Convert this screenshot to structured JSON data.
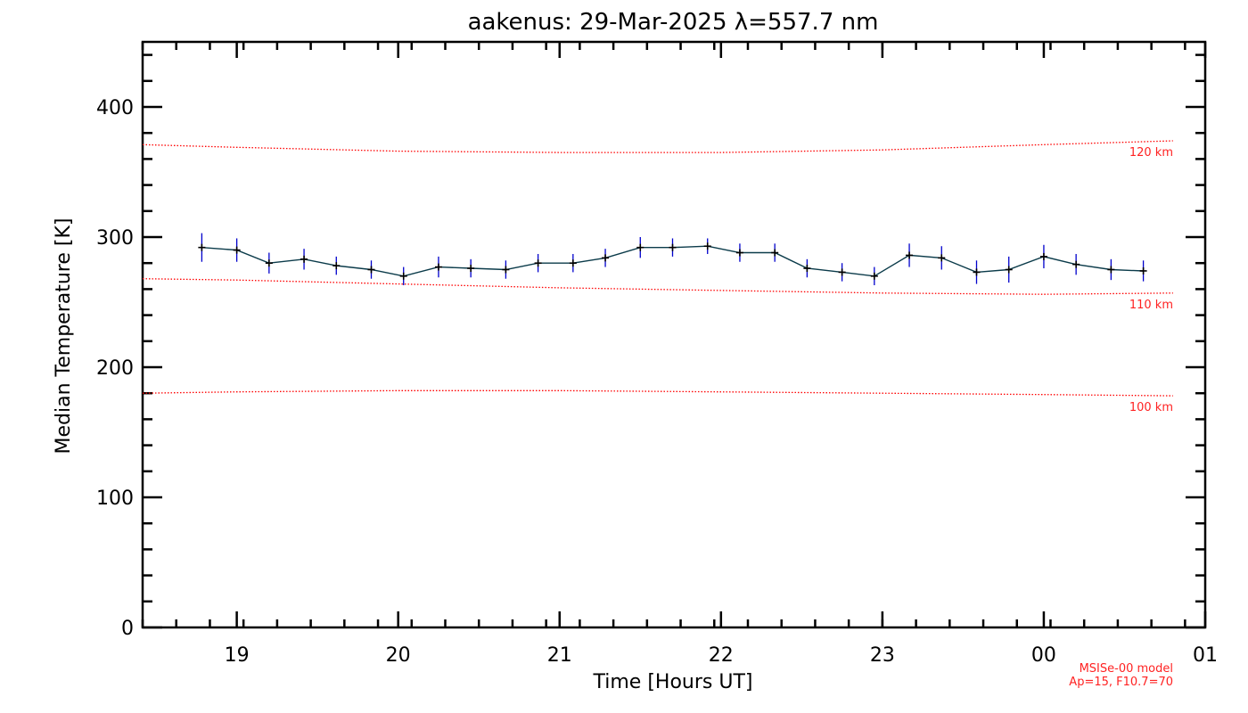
{
  "chart_data": {
    "type": "line",
    "title": "aakenus: 29-Mar-2025 λ=557.7 nm",
    "xlabel": "Time [Hours UT]",
    "ylabel": "Median Temperature [K]",
    "xlim": [
      "18:25",
      "01:00"
    ],
    "ylim": [
      0,
      450
    ],
    "x_ticks": [
      "19",
      "20",
      "21",
      "22",
      "23",
      "00",
      "01"
    ],
    "y_ticks": [
      "0",
      "100",
      "200",
      "300",
      "400"
    ],
    "series": [
      {
        "type": "line-errorbar",
        "color": "#000000",
        "line_color": "#0b3b4a",
        "errorbar_color": "#0000cc",
        "x": [
          "18:47",
          "19:00",
          "19:12",
          "19:25",
          "19:37",
          "19:50",
          "20:02",
          "20:15",
          "20:27",
          "20:40",
          "20:52",
          "21:05",
          "21:17",
          "21:30",
          "21:42",
          "21:55",
          "22:07",
          "22:20",
          "22:32",
          "22:45",
          "22:57",
          "23:10",
          "23:22",
          "23:35",
          "23:47",
          "00:00",
          "00:12",
          "00:25",
          "00:37"
        ],
        "values": [
          292,
          290,
          280,
          283,
          278,
          275,
          270,
          277,
          276,
          275,
          280,
          280,
          284,
          292,
          292,
          293,
          288,
          288,
          276,
          273,
          270,
          286,
          284,
          273,
          275,
          285,
          279,
          275,
          274
        ],
        "errors": [
          11,
          9,
          8,
          8,
          7,
          7,
          7,
          8,
          7,
          7,
          7,
          7,
          7,
          8,
          7,
          6,
          7,
          7,
          7,
          7,
          7,
          9,
          9,
          9,
          10,
          9,
          8,
          8,
          8
        ]
      },
      {
        "name": "120 km",
        "type": "model",
        "color": "#ff0000",
        "x": [
          "18:25",
          "19:00",
          "20:00",
          "21:00",
          "22:00",
          "23:00",
          "00:00",
          "00:48"
        ],
        "values": [
          371,
          369,
          366,
          365,
          365,
          367,
          371,
          374
        ]
      },
      {
        "name": "110 km",
        "type": "model",
        "color": "#ff0000",
        "x": [
          "18:25",
          "19:00",
          "20:00",
          "21:00",
          "22:00",
          "23:00",
          "00:00",
          "00:48"
        ],
        "values": [
          268,
          267,
          264,
          261,
          259,
          257,
          256,
          257
        ]
      },
      {
        "name": "100 km",
        "type": "model",
        "color": "#ff0000",
        "x": [
          "18:25",
          "19:00",
          "20:00",
          "21:00",
          "22:00",
          "23:00",
          "00:00",
          "00:48"
        ],
        "values": [
          180,
          181,
          182,
          182,
          181,
          180,
          179,
          178
        ]
      }
    ],
    "model_note": [
      "MSISe-00 model",
      "Ap=15, F10.7=70"
    ],
    "grid": false,
    "legend": "none"
  }
}
